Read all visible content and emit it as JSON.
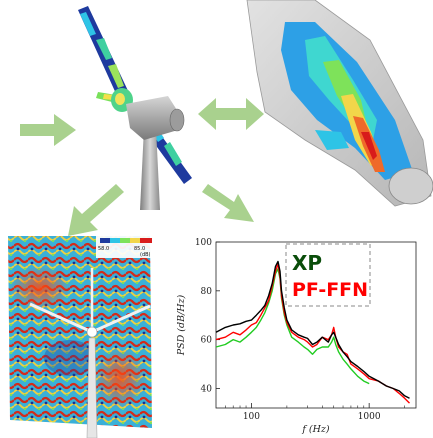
{
  "arrows": {
    "color": "#a9d18e"
  },
  "turbine_top": {
    "blade_color": "#1e3a9e"
  },
  "blade_section": {},
  "flow_field": {
    "colorbar_ticks": [
      "58.0",
      "85.0"
    ],
    "colorbar_label": "(dB)"
  },
  "chart_data": {
    "type": "line",
    "xlabel": "f (Hz)",
    "ylabel": "PSD (dB/Hz)",
    "xscale": "log",
    "xlim": [
      50,
      2500
    ],
    "ylim": [
      32,
      100
    ],
    "x_ticks": [
      "100",
      "1000"
    ],
    "y_ticks": [
      "40",
      "60",
      "80",
      "100"
    ],
    "legend": {
      "placement": "top-right",
      "style": "dashed-box"
    },
    "series": [
      {
        "name": "XP",
        "color": "#000000",
        "x": [
          50,
          60,
          70,
          80,
          90,
          100,
          110,
          120,
          130,
          140,
          150,
          160,
          168,
          175,
          180,
          190,
          200,
          220,
          250,
          280,
          300,
          330,
          360,
          400,
          450,
          480,
          500,
          520,
          550,
          600,
          650,
          700,
          800,
          900,
          1000,
          1200,
          1400,
          1600,
          1800,
          2000,
          2200
        ],
        "y": [
          63,
          65,
          66,
          66.5,
          67.5,
          68,
          70,
          72,
          74,
          78,
          83,
          90,
          92,
          88,
          80,
          73,
          68,
          64,
          62,
          61,
          60.5,
          58,
          59,
          61,
          59,
          62,
          63,
          61,
          58,
          55,
          53,
          51,
          49,
          47,
          45,
          43,
          41,
          40,
          39,
          37,
          36
        ]
      },
      {
        "name": "PF-FFN",
        "color": "#ff0000",
        "x": [
          50,
          60,
          70,
          80,
          90,
          100,
          110,
          120,
          130,
          140,
          150,
          160,
          168,
          175,
          180,
          190,
          200,
          220,
          250,
          280,
          300,
          330,
          360,
          400,
          450,
          480,
          500,
          520,
          550,
          600,
          650,
          700,
          800,
          900,
          1000,
          1200,
          1400,
          1600,
          1800,
          2000,
          2200
        ],
        "y": [
          60,
          61,
          63,
          62,
          64,
          66,
          67,
          70,
          73,
          76,
          82,
          88,
          91,
          86,
          78,
          71,
          67,
          63,
          61,
          60,
          59,
          57,
          58,
          61,
          60,
          62,
          65,
          61,
          57,
          55,
          54,
          50,
          48,
          46,
          44,
          43,
          41,
          40,
          38,
          36,
          34
        ]
      },
      {
        "name": "green",
        "color": "#22cc22",
        "x": [
          50,
          60,
          70,
          80,
          90,
          100,
          110,
          120,
          130,
          140,
          150,
          160,
          168,
          175,
          180,
          190,
          200,
          220,
          250,
          280,
          300,
          330,
          360,
          400,
          450,
          480,
          500,
          520,
          550,
          600,
          650,
          700,
          800,
          900,
          1000
        ],
        "y": [
          57,
          58,
          60,
          59,
          61,
          63,
          65,
          68,
          71,
          75,
          80,
          87,
          89,
          85,
          77,
          70,
          66,
          61,
          59,
          57,
          56,
          54,
          56,
          57,
          57,
          59,
          61,
          58,
          55,
          52,
          50,
          48,
          45,
          43,
          42
        ]
      }
    ]
  }
}
